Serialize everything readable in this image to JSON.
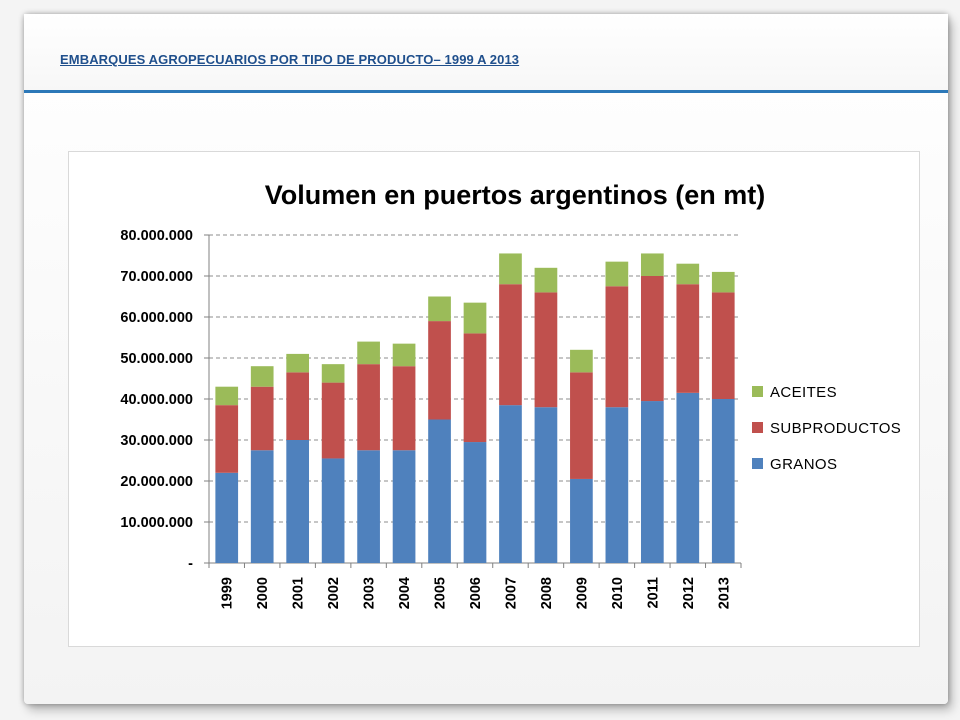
{
  "slide": {
    "title": "EMBARQUES AGROPECUARIOS POR TIPO DE PRODUCTO– 1999 A 2013"
  },
  "colors": {
    "accent_line": "#2c78b8",
    "title_text": "#1f4f8c"
  },
  "chart_data": {
    "type": "bar",
    "stacked": true,
    "title": "Volumen en puertos argentinos (en mt)",
    "xlabel": "",
    "ylabel": "",
    "categories": [
      "1999",
      "2000",
      "2001",
      "2002",
      "2003",
      "2004",
      "2005",
      "2006",
      "2007",
      "2008",
      "2009",
      "2010",
      "2011",
      "2012",
      "2013"
    ],
    "series": [
      {
        "name": "GRANOS",
        "color": "#4f81bd",
        "values": [
          22000000,
          27500000,
          30000000,
          25500000,
          27500000,
          27500000,
          35000000,
          29500000,
          38500000,
          38000000,
          20500000,
          38000000,
          39500000,
          41500000,
          40000000
        ]
      },
      {
        "name": "SUBPRODUCTOS",
        "color": "#c0504d",
        "values": [
          16500000,
          15500000,
          16500000,
          18500000,
          21000000,
          20500000,
          24000000,
          26500000,
          29500000,
          28000000,
          26000000,
          29500000,
          30500000,
          26500000,
          26000000
        ]
      },
      {
        "name": "ACEITES",
        "color": "#9bbb59",
        "values": [
          4500000,
          5000000,
          4500000,
          4500000,
          5500000,
          5500000,
          6000000,
          7500000,
          7500000,
          6000000,
          5500000,
          6000000,
          5500000,
          5000000,
          5000000
        ]
      }
    ],
    "ylim": [
      0,
      80000000
    ],
    "y_ticks": [
      "-",
      "10.000.000",
      "20.000.000",
      "30.000.000",
      "40.000.000",
      "50.000.000",
      "60.000.000",
      "70.000.000",
      "80.000.000"
    ],
    "grid": true,
    "legend_position": "right",
    "legend_order": [
      "ACEITES",
      "SUBPRODUCTOS",
      "GRANOS"
    ]
  }
}
